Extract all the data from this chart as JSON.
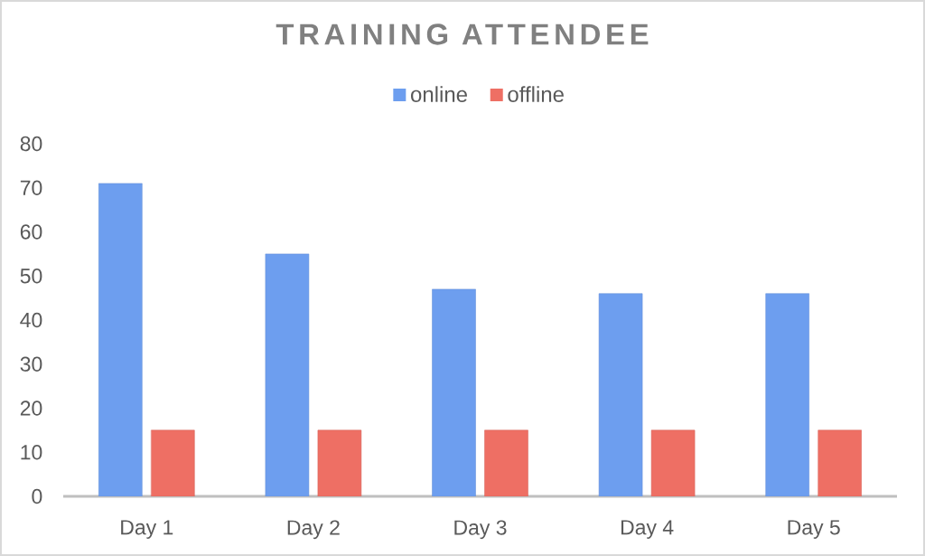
{
  "chart_data": {
    "type": "bar",
    "title": "TRAINING ATTENDEE",
    "categories": [
      "Day 1",
      "Day 2",
      "Day 3",
      "Day 4",
      "Day 5"
    ],
    "series": [
      {
        "name": "online",
        "color": "#6d9eef",
        "values": [
          71,
          55,
          47,
          46,
          46
        ]
      },
      {
        "name": "offline",
        "color": "#ee6f64",
        "values": [
          15,
          15,
          15,
          15,
          15
        ]
      }
    ],
    "ylim": [
      0,
      80
    ],
    "yticks": [
      0,
      10,
      20,
      30,
      40,
      50,
      60,
      70,
      80
    ],
    "legend": "top"
  }
}
